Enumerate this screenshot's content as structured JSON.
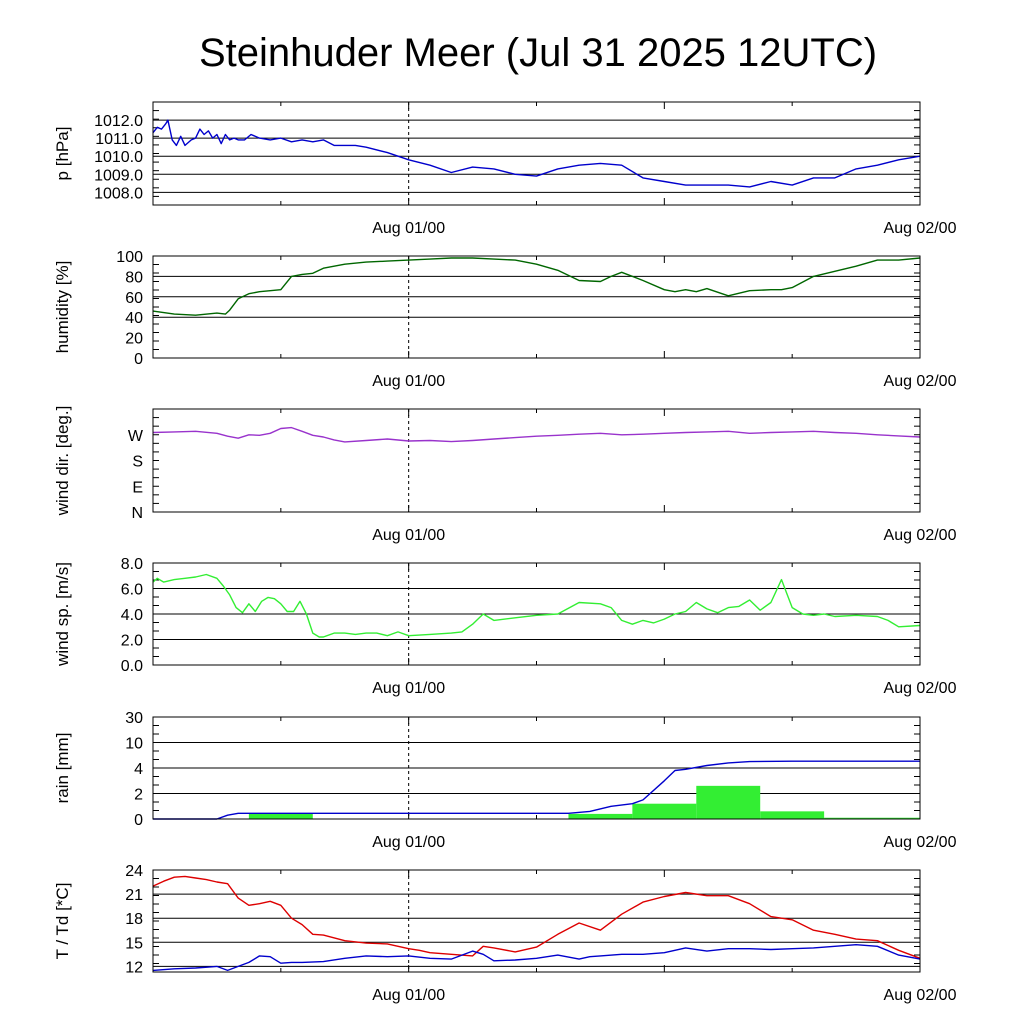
{
  "chart_data": {
    "title": "Steinhuder Meer (Jul 31 2025 12UTC)",
    "time_axis": {
      "range_hours_from_start": [
        0,
        36
      ],
      "tick_labels": [
        "Aug 01/00",
        "Aug 02/00"
      ],
      "tick_hours": [
        12,
        36
      ],
      "dashed_marker_hour": 12
    },
    "panels": [
      {
        "type": "line",
        "ylabel": "p [hPa]",
        "ylim": [
          1007.3,
          1013.0
        ],
        "yticks": [
          "1012.0",
          "1011.0",
          "1010.0",
          "1009.0",
          "1008.0"
        ],
        "ytick_values": [
          1012.0,
          1011.0,
          1010.0,
          1009.0,
          1008.0
        ],
        "grid_values": [
          1008.0,
          1009.0,
          1010.0,
          1011.0,
          1012.0
        ],
        "series": [
          {
            "color": "#0000cc",
            "x": [
              0,
              0.2,
              0.4,
              0.6,
              0.7,
              0.9,
              1.1,
              1.3,
              1.5,
              1.8,
              2.0,
              2.2,
              2.4,
              2.6,
              2.8,
              3.0,
              3.2,
              3.4,
              3.6,
              3.8,
              4.0,
              4.3,
              4.6,
              5.0,
              5.5,
              6.0,
              6.5,
              7.0,
              7.5,
              8.0,
              8.5,
              9.0,
              9.5,
              10.0,
              11.0,
              12.0,
              13.0,
              14.0,
              15.0,
              16.0,
              17.0,
              18.0,
              19.0,
              20.0,
              21.0,
              22.0,
              23.0,
              24.0,
              25.0,
              26.0,
              27.0,
              28.0,
              29.0,
              30.0,
              31.0,
              32.0,
              33.0,
              34.0,
              35.0,
              36.0
            ],
            "y": [
              1011.3,
              1011.6,
              1011.5,
              1011.8,
              1012.0,
              1010.9,
              1010.6,
              1011.1,
              1010.6,
              1010.9,
              1011.0,
              1011.5,
              1011.2,
              1011.4,
              1011.0,
              1011.2,
              1010.7,
              1011.2,
              1010.9,
              1011.0,
              1010.9,
              1010.9,
              1011.2,
              1011.0,
              1010.9,
              1011.0,
              1010.8,
              1010.9,
              1010.8,
              1010.9,
              1010.6,
              1010.6,
              1010.6,
              1010.5,
              1010.2,
              1009.8,
              1009.5,
              1009.1,
              1009.4,
              1009.3,
              1009.0,
              1008.9,
              1009.3,
              1009.5,
              1009.6,
              1009.5,
              1008.8,
              1008.6,
              1008.4,
              1008.4,
              1008.4,
              1008.3,
              1008.6,
              1008.4,
              1008.8,
              1008.8,
              1009.3,
              1009.5,
              1009.8,
              1010.0
            ]
          }
        ]
      },
      {
        "type": "line",
        "ylabel": "humidity [%]",
        "ylim": [
          0,
          100
        ],
        "yticks": [
          "100",
          "80",
          "60",
          "40",
          "20",
          "0"
        ],
        "ytick_values": [
          100,
          80,
          60,
          40,
          20,
          0
        ],
        "grid_values": [
          40,
          60,
          80
        ],
        "series": [
          {
            "color": "#006600",
            "x": [
              0,
              1.0,
              2.0,
              3.0,
              3.4,
              3.6,
              4.0,
              4.5,
              5.0,
              5.5,
              6.0,
              6.5,
              7.0,
              7.5,
              8.0,
              8.5,
              9.0,
              10.0,
              11.0,
              12.0,
              13.0,
              14.0,
              15.0,
              16.0,
              17.0,
              18.0,
              19.0,
              20.0,
              21.0,
              21.5,
              22.0,
              23.0,
              24.0,
              24.5,
              25.0,
              25.5,
              26.0,
              27.0,
              28.0,
              29.0,
              29.5,
              30.0,
              31.0,
              32.0,
              33.0,
              34.0,
              35.0,
              36.0
            ],
            "y": [
              46,
              43,
              42,
              44,
              43,
              47,
              58,
              63,
              65,
              66,
              67,
              80,
              82,
              83,
              88,
              90,
              92,
              94,
              95,
              96,
              97,
              98,
              98,
              97,
              96,
              92,
              86,
              76,
              75,
              80,
              84,
              76,
              67,
              65,
              67,
              65,
              68,
              61,
              66,
              67,
              67,
              69,
              80,
              85,
              90,
              96,
              96,
              98
            ]
          }
        ]
      },
      {
        "type": "line",
        "ylabel": "wind dir. [deg.]",
        "ylim": [
          0,
          360
        ],
        "yticks": [
          "W",
          "S",
          "E",
          "N"
        ],
        "ytick_values": [
          270,
          180,
          90,
          0
        ],
        "grid_values": [],
        "series": [
          {
            "color": "#9933cc",
            "x": [
              0,
              1.0,
              2.0,
              3.0,
              3.5,
              4.0,
              4.5,
              5.0,
              5.5,
              6.0,
              6.5,
              7.0,
              7.5,
              8.0,
              8.5,
              9.0,
              10.0,
              11.0,
              12.0,
              13.0,
              14.0,
              15.0,
              16.0,
              17.0,
              18.0,
              19.0,
              20.0,
              21.0,
              22.0,
              23.0,
              24.0,
              25.0,
              26.0,
              27.0,
              28.0,
              29.0,
              30.0,
              31.0,
              32.0,
              33.0,
              34.0,
              35.0,
              36.0
            ],
            "y": [
              278,
              280,
              282,
              275,
              265,
              258,
              270,
              268,
              275,
              292,
              295,
              282,
              268,
              262,
              252,
              245,
              250,
              255,
              248,
              250,
              246,
              250,
              255,
              260,
              265,
              268,
              272,
              275,
              270,
              272,
              275,
              278,
              280,
              282,
              275,
              278,
              280,
              282,
              278,
              275,
              270,
              266,
              262
            ]
          }
        ]
      },
      {
        "type": "line",
        "ylabel": "wind sp. [m/s]",
        "ylim": [
          0,
          8.0
        ],
        "yticks": [
          "8.0",
          "6.0",
          "4.0",
          "2.0",
          "0.0"
        ],
        "ytick_values": [
          8,
          6,
          4,
          2,
          0
        ],
        "grid_values": [
          2,
          4,
          6
        ],
        "series": [
          {
            "color": "#33ee33",
            "x": [
              0,
              0.2,
              0.5,
              1.0,
              1.5,
              2.0,
              2.5,
              3.0,
              3.3,
              3.6,
              3.9,
              4.2,
              4.5,
              4.8,
              5.1,
              5.4,
              5.7,
              6.0,
              6.3,
              6.6,
              6.9,
              7.2,
              7.5,
              7.8,
              8.0,
              8.5,
              9.0,
              9.5,
              10.0,
              10.5,
              11.0,
              11.5,
              12.0,
              13.0,
              14.0,
              14.5,
              15.0,
              15.5,
              16.0,
              17.0,
              18.0,
              19.0,
              20.0,
              21.0,
              21.5,
              22.0,
              22.5,
              23.0,
              23.5,
              24.0,
              24.5,
              25.0,
              25.5,
              26.0,
              26.5,
              27.0,
              27.5,
              28.0,
              28.5,
              29.0,
              29.5,
              30.0,
              30.5,
              31.0,
              31.5,
              32.0,
              33.0,
              34.0,
              34.5,
              35.0,
              36.0
            ],
            "y": [
              6.5,
              6.8,
              6.5,
              6.7,
              6.8,
              6.9,
              7.1,
              6.8,
              6.2,
              5.5,
              4.5,
              4.1,
              4.8,
              4.2,
              5.0,
              5.3,
              5.2,
              4.8,
              4.2,
              4.2,
              5.0,
              4.0,
              2.5,
              2.2,
              2.2,
              2.5,
              2.5,
              2.4,
              2.5,
              2.5,
              2.3,
              2.6,
              2.3,
              2.4,
              2.5,
              2.6,
              3.2,
              4.0,
              3.5,
              3.7,
              3.9,
              4.0,
              4.9,
              4.8,
              4.5,
              3.5,
              3.2,
              3.5,
              3.3,
              3.6,
              4.0,
              4.2,
              4.9,
              4.4,
              4.1,
              4.5,
              4.6,
              5.1,
              4.3,
              4.9,
              6.7,
              4.5,
              4.0,
              3.9,
              4.0,
              3.8,
              3.9,
              3.8,
              3.5,
              3.0,
              3.1
            ]
          }
        ]
      },
      {
        "type": "bar+line",
        "ylabel": "rain [mm]",
        "scale": "piecewise",
        "ylim": [
          0,
          30
        ],
        "yticks": [
          "30",
          "10",
          "4",
          "2",
          "0"
        ],
        "ytick_values": [
          30,
          10,
          4,
          2,
          0
        ],
        "grid_values": [
          2,
          4,
          10,
          30
        ],
        "bars": {
          "color": "#33ee33",
          "bins_hours": [
            [
              4.5,
              7.5
            ],
            [
              19.5,
              22.5
            ],
            [
              22.5,
              25.5
            ],
            [
              25.5,
              28.5
            ],
            [
              28.5,
              31.5
            ],
            [
              31.5,
              36
            ]
          ],
          "values": [
            0.45,
            0.4,
            1.2,
            2.6,
            0.6,
            0.1
          ]
        },
        "series": [
          {
            "name": "accumulated",
            "color": "#0000cc",
            "x": [
              0,
              3.0,
              3.5,
              4.0,
              19.5,
              20.5,
              21.5,
              22.5,
              23.0,
              24.0,
              24.5,
              25.0,
              26.0,
              27.0,
              28.0,
              30.0,
              33.0,
              36.0
            ],
            "y": [
              0,
              0,
              0.3,
              0.45,
              0.45,
              0.6,
              1.0,
              1.2,
              1.5,
              3.0,
              3.8,
              3.9,
              4.6,
              5.2,
              5.5,
              5.6,
              5.6,
              5.6
            ]
          }
        ]
      },
      {
        "type": "line",
        "ylabel": "T / Td [*C]",
        "ylim": [
          11.3,
          24
        ],
        "yticks": [
          "24",
          "21",
          "18",
          "15",
          "12"
        ],
        "ytick_values": [
          24,
          21,
          18,
          15,
          12
        ],
        "grid_values": [
          12,
          15,
          18,
          21,
          24
        ],
        "series": [
          {
            "name": "T",
            "color": "#dd0000",
            "x": [
              0,
              0.5,
              1.0,
              1.5,
              2.0,
              2.5,
              3.0,
              3.5,
              4.0,
              4.5,
              5.0,
              5.5,
              6.0,
              6.5,
              7.0,
              7.5,
              8.0,
              9.0,
              10.0,
              11.0,
              12.0,
              12.5,
              13.0,
              14.0,
              15.0,
              15.5,
              16.0,
              17.0,
              18.0,
              19.0,
              20.0,
              21.0,
              22.0,
              23.0,
              24.0,
              25.0,
              26.0,
              27.0,
              28.0,
              29.0,
              30.0,
              31.0,
              32.0,
              33.0,
              34.0,
              35.0,
              36.0
            ],
            "y": [
              22.0,
              22.6,
              23.1,
              23.2,
              23.0,
              22.8,
              22.5,
              22.3,
              20.5,
              19.6,
              19.8,
              20.1,
              19.6,
              18.0,
              17.2,
              16.0,
              15.9,
              15.2,
              14.9,
              14.8,
              14.2,
              14.0,
              13.7,
              13.5,
              13.3,
              14.5,
              14.3,
              13.8,
              14.4,
              16.0,
              17.4,
              16.5,
              18.5,
              20.0,
              20.7,
              21.2,
              20.8,
              20.8,
              19.8,
              18.2,
              17.8,
              16.5,
              16.0,
              15.4,
              15.2,
              14.0,
              13.0
            ]
          },
          {
            "name": "Td",
            "color": "#0000cc",
            "x": [
              0,
              1.0,
              2.0,
              3.0,
              3.5,
              4.0,
              4.5,
              5.0,
              5.5,
              6.0,
              6.5,
              7.0,
              8.0,
              9.0,
              10.0,
              11.0,
              12.0,
              13.0,
              14.0,
              15.0,
              15.5,
              16.0,
              17.0,
              18.0,
              19.0,
              20.0,
              20.5,
              21.0,
              22.0,
              23.0,
              24.0,
              25.0,
              26.0,
              27.0,
              28.0,
              29.0,
              30.0,
              31.0,
              32.0,
              33.0,
              34.0,
              35.0,
              36.0
            ],
            "y": [
              11.5,
              11.7,
              11.8,
              12.0,
              11.5,
              12.0,
              12.5,
              13.3,
              13.2,
              12.4,
              12.5,
              12.5,
              12.6,
              13.0,
              13.3,
              13.2,
              13.3,
              13.0,
              12.9,
              13.9,
              13.5,
              12.7,
              12.8,
              13.0,
              13.4,
              12.9,
              13.2,
              13.3,
              13.5,
              13.5,
              13.7,
              14.3,
              13.9,
              14.2,
              14.2,
              14.1,
              14.2,
              14.3,
              14.5,
              14.7,
              14.5,
              13.4,
              12.9
            ]
          }
        ]
      }
    ]
  }
}
